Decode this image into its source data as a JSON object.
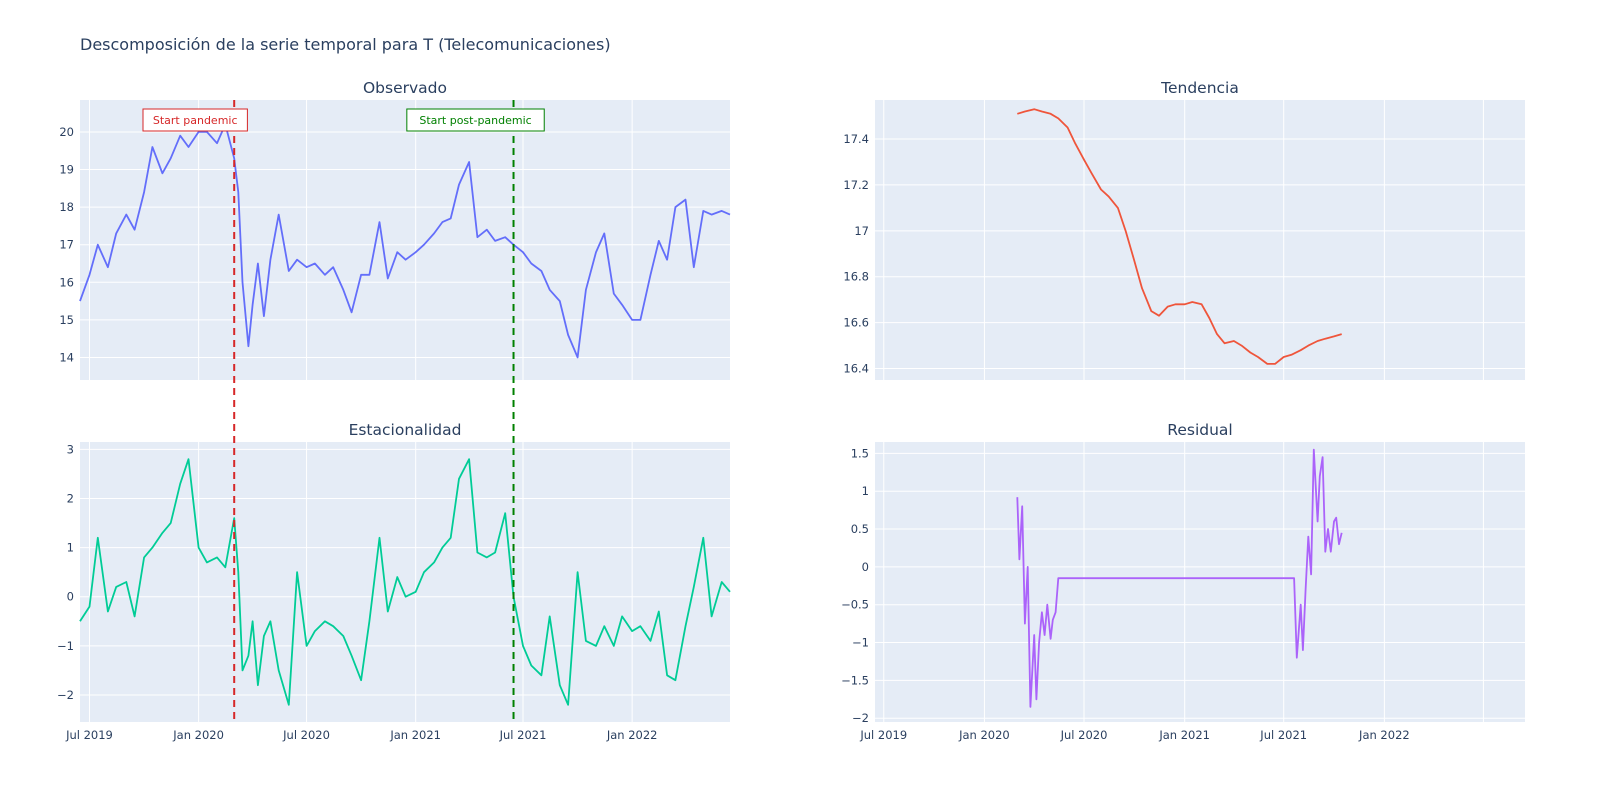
{
  "title": "Descomposición de la serie temporal para T (Telecomunicaciones)",
  "colors": {
    "plot_bg": "#e5ecf6",
    "grid": "#ffffff",
    "observed": "#636efa",
    "trend": "#ef553b",
    "seasonal": "#00cc96",
    "residual": "#ab63fa",
    "pandemic": "#d62728",
    "post_pandemic": "#008000"
  },
  "annotations": {
    "pandemic": {
      "label": "Start pandemic",
      "date": "2020-03-01"
    },
    "post_pandemic": {
      "label": "Start post-pandemic",
      "date": "2021-06-15"
    }
  },
  "chart_data": [
    {
      "id": "observed",
      "type": "line",
      "title": "Observado",
      "xlim": [
        "2019-06-15",
        "2022-06-15"
      ],
      "ylim": [
        13.4,
        20.85
      ],
      "yticks": [
        14,
        15,
        16,
        17,
        18,
        19,
        20
      ],
      "ytick_labels": [
        "14",
        "15",
        "16",
        "17",
        "18",
        "19",
        "20"
      ],
      "xticks": [
        "2019-07-01",
        "2020-01-01",
        "2020-07-01",
        "2021-01-01",
        "2021-07-01",
        "2022-01-01"
      ],
      "xtick_labels": [],
      "series": [
        {
          "name": "Observado",
          "x": [
            "2019-06-15",
            "2019-07-01",
            "2019-07-15",
            "2019-08-01",
            "2019-08-15",
            "2019-09-01",
            "2019-09-15",
            "2019-10-01",
            "2019-10-15",
            "2019-11-01",
            "2019-11-15",
            "2019-12-01",
            "2019-12-15",
            "2020-01-01",
            "2020-01-15",
            "2020-02-01",
            "2020-02-15",
            "2020-03-01",
            "2020-03-08",
            "2020-03-15",
            "2020-03-25",
            "2020-04-01",
            "2020-04-10",
            "2020-04-20",
            "2020-05-01",
            "2020-05-15",
            "2020-06-01",
            "2020-06-15",
            "2020-07-01",
            "2020-07-15",
            "2020-08-01",
            "2020-08-15",
            "2020-09-01",
            "2020-09-15",
            "2020-10-01",
            "2020-10-15",
            "2020-11-01",
            "2020-11-15",
            "2020-12-01",
            "2020-12-15",
            "2021-01-01",
            "2021-01-15",
            "2021-02-01",
            "2021-02-15",
            "2021-03-01",
            "2021-03-15",
            "2021-04-01",
            "2021-04-15",
            "2021-05-01",
            "2021-05-15",
            "2021-06-01",
            "2021-06-15",
            "2021-07-01",
            "2021-07-15",
            "2021-08-01",
            "2021-08-15",
            "2021-09-01",
            "2021-09-15",
            "2021-10-01",
            "2021-10-15",
            "2021-11-01",
            "2021-11-15",
            "2021-12-01",
            "2021-12-15",
            "2022-01-01",
            "2022-01-15",
            "2022-02-01",
            "2022-02-15",
            "2022-03-01",
            "2022-03-15",
            "2022-04-01",
            "2022-04-15",
            "2022-05-01",
            "2022-05-15",
            "2022-06-01",
            "2022-06-15"
          ],
          "values": [
            15.5,
            16.2,
            17.0,
            16.4,
            17.3,
            17.8,
            17.4,
            18.4,
            19.6,
            18.9,
            19.3,
            19.9,
            19.6,
            20.0,
            20.0,
            19.7,
            20.2,
            19.3,
            18.4,
            16.0,
            14.3,
            15.4,
            16.5,
            15.1,
            16.6,
            17.8,
            16.3,
            16.6,
            16.4,
            16.5,
            16.2,
            16.4,
            15.8,
            15.2,
            16.2,
            16.2,
            17.6,
            16.1,
            16.8,
            16.6,
            16.8,
            17.0,
            17.3,
            17.6,
            17.7,
            18.6,
            19.2,
            17.2,
            17.4,
            17.1,
            17.2,
            17.0,
            16.8,
            16.5,
            16.3,
            15.8,
            15.5,
            14.6,
            14.0,
            15.8,
            16.8,
            17.3,
            15.7,
            15.4,
            15.0,
            15.0,
            16.2,
            17.1,
            16.6,
            18.0,
            18.2,
            16.4,
            17.9,
            17.8,
            17.9,
            17.8
          ]
        }
      ]
    },
    {
      "id": "trend",
      "type": "line",
      "title": "Tendencia",
      "xlim": [
        "2019-06-15",
        "2022-09-15"
      ],
      "ylim": [
        16.35,
        17.57
      ],
      "yticks": [
        16.4,
        16.6,
        16.8,
        17.0,
        17.2,
        17.4
      ],
      "ytick_labels": [
        "16.4",
        "16.6",
        "16.8",
        "17",
        "17.2",
        "17.4"
      ],
      "xticks": [
        "2019-07-01",
        "2020-01-01",
        "2020-07-01",
        "2021-01-01",
        "2021-07-01",
        "2022-01-01",
        "2022-07-01"
      ],
      "xtick_labels": [],
      "series": [
        {
          "name": "Tendencia",
          "x": [
            "2020-03-01",
            "2020-03-15",
            "2020-04-01",
            "2020-04-15",
            "2020-05-01",
            "2020-05-15",
            "2020-06-01",
            "2020-06-15",
            "2020-07-01",
            "2020-07-15",
            "2020-08-01",
            "2020-08-15",
            "2020-09-01",
            "2020-09-15",
            "2020-10-01",
            "2020-10-15",
            "2020-11-01",
            "2020-11-15",
            "2020-12-01",
            "2020-12-15",
            "2021-01-01",
            "2021-01-15",
            "2021-02-01",
            "2021-02-15",
            "2021-03-01",
            "2021-03-15",
            "2021-04-01",
            "2021-04-15",
            "2021-05-01",
            "2021-05-15",
            "2021-06-01",
            "2021-06-15",
            "2021-07-01",
            "2021-07-15",
            "2021-08-01",
            "2021-08-15",
            "2021-09-01",
            "2021-09-15",
            "2021-10-01",
            "2021-10-15"
          ],
          "values": [
            17.51,
            17.52,
            17.53,
            17.52,
            17.51,
            17.49,
            17.45,
            17.38,
            17.31,
            17.25,
            17.18,
            17.15,
            17.1,
            17.0,
            16.87,
            16.75,
            16.65,
            16.63,
            16.67,
            16.68,
            16.68,
            16.69,
            16.68,
            16.62,
            16.55,
            16.51,
            16.52,
            16.5,
            16.47,
            16.45,
            16.42,
            16.42,
            16.45,
            16.46,
            16.48,
            16.5,
            16.52,
            16.53,
            16.54,
            16.55
          ]
        }
      ]
    },
    {
      "id": "seasonal",
      "type": "line",
      "title": "Estacionalidad",
      "xlim": [
        "2019-06-15",
        "2022-06-15"
      ],
      "ylim": [
        -2.55,
        3.15
      ],
      "yticks": [
        -2,
        -1,
        0,
        1,
        2,
        3
      ],
      "ytick_labels": [
        "−2",
        "−1",
        "0",
        "1",
        "2",
        "3"
      ],
      "xticks": [
        "2019-07-01",
        "2020-01-01",
        "2020-07-01",
        "2021-01-01",
        "2021-07-01",
        "2022-01-01"
      ],
      "xtick_labels": [
        "Jul 2019",
        "Jan 2020",
        "Jul 2020",
        "Jan 2021",
        "Jul 2021",
        "Jan 2022"
      ],
      "series": [
        {
          "name": "Estacionalidad",
          "x": [
            "2019-06-15",
            "2019-07-01",
            "2019-07-15",
            "2019-08-01",
            "2019-08-15",
            "2019-09-01",
            "2019-09-15",
            "2019-10-01",
            "2019-10-15",
            "2019-11-01",
            "2019-11-15",
            "2019-12-01",
            "2019-12-15",
            "2020-01-01",
            "2020-01-15",
            "2020-02-01",
            "2020-02-15",
            "2020-03-01",
            "2020-03-08",
            "2020-03-15",
            "2020-03-25",
            "2020-04-01",
            "2020-04-10",
            "2020-04-20",
            "2020-05-01",
            "2020-05-15",
            "2020-06-01",
            "2020-06-15",
            "2020-07-01",
            "2020-07-15",
            "2020-08-01",
            "2020-08-15",
            "2020-09-01",
            "2020-09-15",
            "2020-10-01",
            "2020-10-15",
            "2020-11-01",
            "2020-11-15",
            "2020-12-01",
            "2020-12-15",
            "2021-01-01",
            "2021-01-15",
            "2021-02-01",
            "2021-02-15",
            "2021-03-01",
            "2021-03-15",
            "2021-04-01",
            "2021-04-15",
            "2021-05-01",
            "2021-05-15",
            "2021-06-01",
            "2021-06-15",
            "2021-07-01",
            "2021-07-15",
            "2021-08-01",
            "2021-08-15",
            "2021-09-01",
            "2021-09-15",
            "2021-10-01",
            "2021-10-15",
            "2021-11-01",
            "2021-11-15",
            "2021-12-01",
            "2021-12-15",
            "2022-01-01",
            "2022-01-15",
            "2022-02-01",
            "2022-02-15",
            "2022-03-01",
            "2022-03-15",
            "2022-04-01",
            "2022-04-15",
            "2022-05-01",
            "2022-05-15",
            "2022-06-01",
            "2022-06-15"
          ],
          "values": [
            -0.5,
            -0.2,
            1.2,
            -0.3,
            0.2,
            0.3,
            -0.4,
            0.8,
            1.0,
            1.3,
            1.5,
            2.3,
            2.8,
            1.0,
            0.7,
            0.8,
            0.6,
            1.6,
            0.5,
            -1.5,
            -1.2,
            -0.5,
            -1.8,
            -0.8,
            -0.5,
            -1.5,
            -2.2,
            0.5,
            -1.0,
            -0.7,
            -0.5,
            -0.6,
            -0.8,
            -1.2,
            -1.7,
            -0.5,
            1.2,
            -0.3,
            0.4,
            0.0,
            0.1,
            0.5,
            0.7,
            1.0,
            1.2,
            2.4,
            2.8,
            0.9,
            0.8,
            0.9,
            1.7,
            0.0,
            -1.0,
            -1.4,
            -1.6,
            -0.4,
            -1.8,
            -2.2,
            0.5,
            -0.9,
            -1.0,
            -0.6,
            -1.0,
            -0.4,
            -0.7,
            -0.6,
            -0.9,
            -0.3,
            -1.6,
            -1.7,
            -0.6,
            0.2,
            1.2,
            -0.4,
            0.3,
            0.1
          ]
        }
      ]
    },
    {
      "id": "residual",
      "type": "line",
      "title": "Residual",
      "xlim": [
        "2019-06-15",
        "2022-09-15"
      ],
      "ylim": [
        -2.05,
        1.65
      ],
      "yticks": [
        -2,
        -1.5,
        -1,
        -0.5,
        0,
        0.5,
        1,
        1.5
      ],
      "ytick_labels": [
        "−2",
        "−1.5",
        "−1",
        "−0.5",
        "0",
        "0.5",
        "1",
        "1.5"
      ],
      "xticks": [
        "2019-07-01",
        "2020-01-01",
        "2020-07-01",
        "2021-01-01",
        "2021-07-01",
        "2022-01-01",
        "2022-07-01"
      ],
      "xtick_labels": [
        "Jul 2019",
        "Jan 2020",
        "Jul 2020",
        "Jan 2021",
        "Jul 2021",
        "Jan 2022",
        ""
      ],
      "series": [
        {
          "name": "Residual",
          "x": [
            "2020-03-01",
            "2020-03-05",
            "2020-03-10",
            "2020-03-15",
            "2020-03-20",
            "2020-03-25",
            "2020-04-01",
            "2020-04-05",
            "2020-04-10",
            "2020-04-15",
            "2020-04-20",
            "2020-04-25",
            "2020-05-01",
            "2020-05-05",
            "2020-05-10",
            "2020-05-15",
            "2020-05-20",
            "2020-05-25",
            "2020-06-01",
            "2021-07-20",
            "2021-07-25",
            "2021-08-01",
            "2021-08-05",
            "2021-08-10",
            "2021-08-15",
            "2021-08-20",
            "2021-08-25",
            "2021-09-01",
            "2021-09-05",
            "2021-09-10",
            "2021-09-15",
            "2021-09-20",
            "2021-09-25",
            "2021-10-01",
            "2021-10-05",
            "2021-10-10",
            "2021-10-15"
          ],
          "values": [
            0.92,
            0.1,
            0.8,
            -0.75,
            0.0,
            -1.85,
            -0.9,
            -1.75,
            -1.0,
            -0.6,
            -0.9,
            -0.5,
            -0.95,
            -0.7,
            -0.6,
            -0.15,
            -0.15,
            -0.15,
            -0.15,
            -0.15,
            -1.2,
            -0.5,
            -1.1,
            -0.3,
            0.4,
            -0.1,
            1.55,
            0.6,
            1.2,
            1.45,
            0.2,
            0.5,
            0.2,
            0.6,
            0.65,
            0.3,
            0.45
          ]
        }
      ]
    }
  ]
}
